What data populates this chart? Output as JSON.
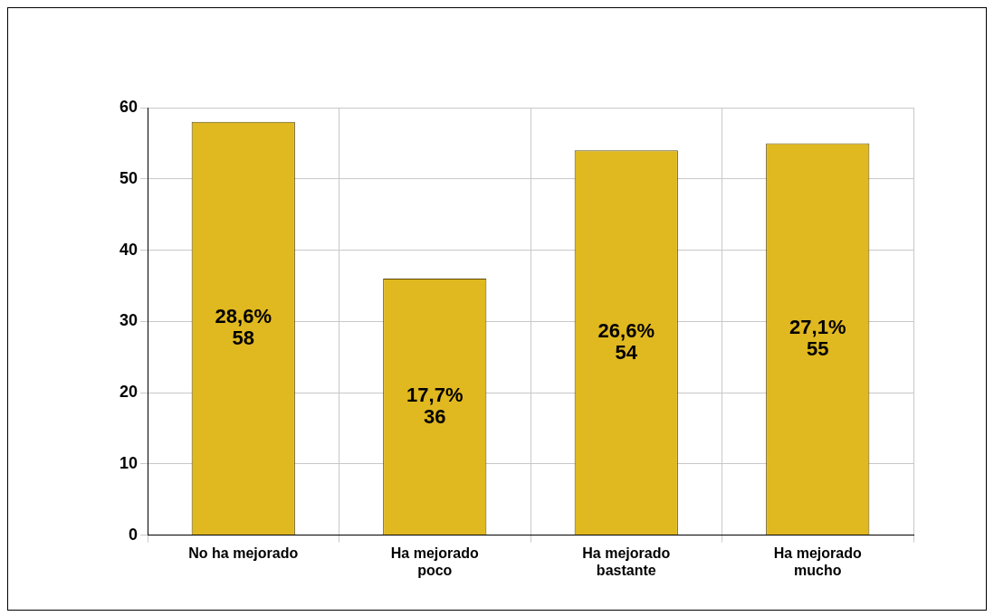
{
  "chart_data": {
    "type": "bar",
    "categories": [
      "No ha mejorado",
      "Ha mejorado poco",
      "Ha mejorado bastante",
      "Ha mejorado mucho"
    ],
    "values": [
      58,
      36,
      54,
      55
    ],
    "value_labels": [
      "28,6%\n58",
      "17,7%\n36",
      "26,6%\n54",
      "27,1%\n55"
    ],
    "color": "#e0b820",
    "ylim": [
      0,
      60
    ],
    "yticks": [
      0,
      10,
      20,
      30,
      40,
      50,
      60
    ],
    "grid": true,
    "legend": false
  }
}
